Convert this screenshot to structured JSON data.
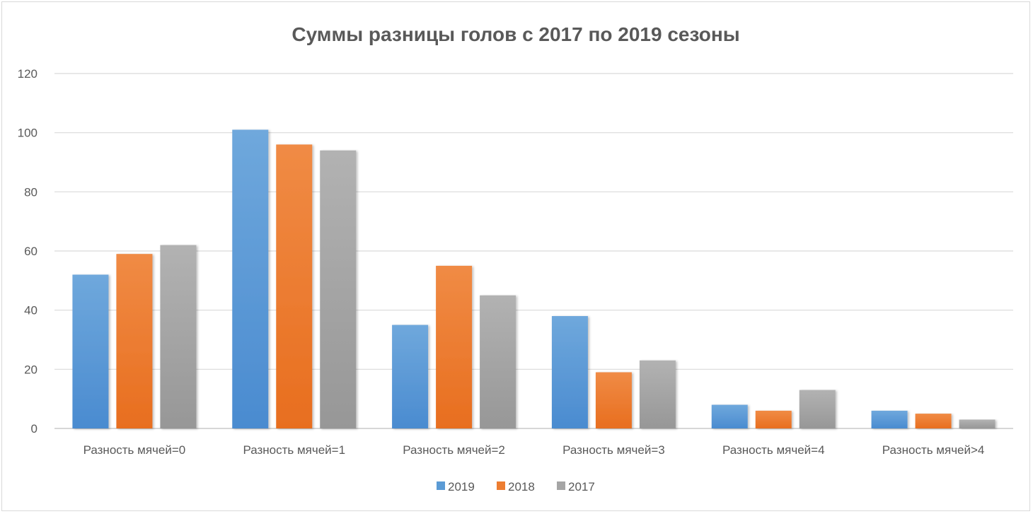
{
  "chart_data": {
    "type": "bar",
    "title": "Суммы разницы голов с 2017 по 2019 сезоны",
    "xlabel": "",
    "ylabel": "",
    "categories": [
      "Разность мячей=0",
      "Разность мячей=1",
      "Разность мячей=2",
      "Разность мячей=3",
      "Разность мячей=4",
      "Разность мячей>4"
    ],
    "series": [
      {
        "name": "2019",
        "color": "#5b9bd5",
        "values": [
          52,
          101,
          35,
          38,
          8,
          6
        ]
      },
      {
        "name": "2018",
        "color": "#ed7d31",
        "values": [
          59,
          96,
          55,
          19,
          6,
          5
        ]
      },
      {
        "name": "2017",
        "color": "#a5a5a5",
        "values": [
          62,
          94,
          45,
          23,
          13,
          3
        ]
      }
    ],
    "ylim": [
      0,
      120
    ],
    "yticks": [
      0,
      20,
      40,
      60,
      80,
      100,
      120
    ],
    "grid": true,
    "legend_position": "bottom"
  }
}
